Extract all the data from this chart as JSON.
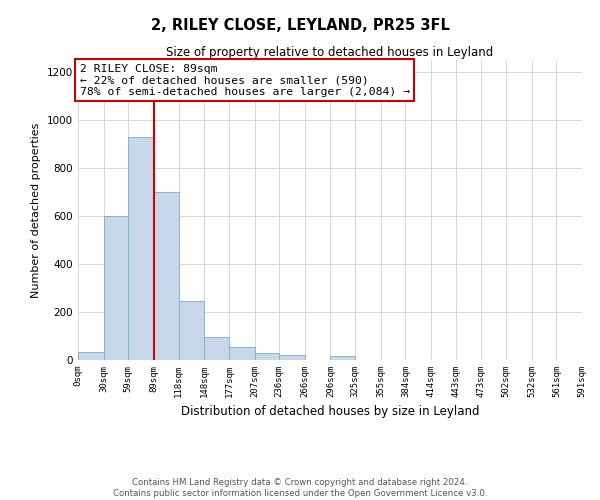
{
  "title1": "2, RILEY CLOSE, LEYLAND, PR25 3FL",
  "title2": "Size of property relative to detached houses in Leyland",
  "xlabel": "Distribution of detached houses by size in Leyland",
  "ylabel": "Number of detached properties",
  "bar_values": [
    35,
    600,
    930,
    700,
    245,
    95,
    55,
    30,
    20,
    0,
    15,
    0,
    0,
    0,
    0,
    0,
    0,
    0,
    0,
    0
  ],
  "bin_edges": [
    0,
    30,
    59,
    89,
    118,
    148,
    177,
    207,
    236,
    266,
    296,
    325,
    355,
    384,
    414,
    443,
    473,
    502,
    532,
    561,
    591
  ],
  "tick_labels": [
    "0sqm",
    "30sqm",
    "59sqm",
    "89sqm",
    "118sqm",
    "148sqm",
    "177sqm",
    "207sqm",
    "236sqm",
    "266sqm",
    "296sqm",
    "325sqm",
    "355sqm",
    "384sqm",
    "414sqm",
    "443sqm",
    "473sqm",
    "502sqm",
    "532sqm",
    "561sqm",
    "591sqm"
  ],
  "bar_color": "#c8d8ea",
  "bar_edge_color": "#7aabca",
  "property_line_x": 89,
  "property_line_color": "#cc0000",
  "annotation_text": "2 RILEY CLOSE: 89sqm\n← 22% of detached houses are smaller (590)\n78% of semi-detached houses are larger (2,084) →",
  "annotation_box_color": "#ffffff",
  "annotation_box_edge": "#cc0000",
  "ylim": [
    0,
    1250
  ],
  "yticks": [
    0,
    200,
    400,
    600,
    800,
    1000,
    1200
  ],
  "footer_text": "Contains HM Land Registry data © Crown copyright and database right 2024.\nContains public sector information licensed under the Open Government Licence v3.0.",
  "background_color": "#ffffff",
  "grid_color": "#ccd8e4"
}
